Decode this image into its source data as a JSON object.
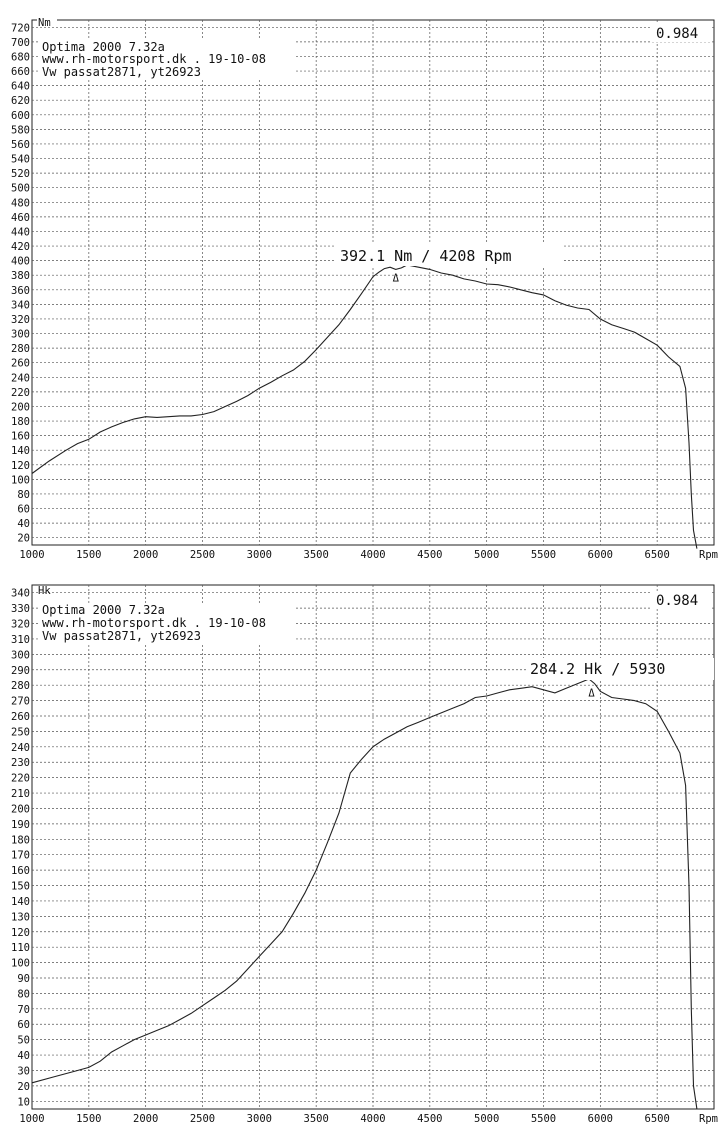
{
  "chart_data": [
    {
      "type": "line",
      "unit_label": "Nm",
      "axis_end_label": "Rpm",
      "correction": "0.984",
      "header_lines": [
        "Optima 2000 7.32a",
        "www.rh-motorsport.dk . 19-10-08",
        "Vw passat2871, yt26923"
      ],
      "peak_label": "392.1  Nm  /  4208  Rpm",
      "peak_marker": "Δ",
      "peak_point": [
        4208,
        385
      ],
      "xlim": [
        1000,
        7000
      ],
      "ylim": [
        10,
        730
      ],
      "x_ticks": [
        1000,
        1500,
        2000,
        2500,
        3000,
        3500,
        4000,
        4500,
        5000,
        5500,
        6000,
        6500
      ],
      "y_ticks": [
        20,
        40,
        60,
        80,
        100,
        120,
        140,
        160,
        180,
        200,
        220,
        240,
        260,
        280,
        300,
        320,
        340,
        360,
        380,
        400,
        420,
        440,
        460,
        480,
        500,
        520,
        540,
        560,
        580,
        600,
        620,
        640,
        660,
        680,
        700,
        720
      ],
      "x": [
        1000,
        1150,
        1300,
        1400,
        1500,
        1600,
        1700,
        1800,
        1900,
        2000,
        2100,
        2200,
        2300,
        2400,
        2500,
        2600,
        2700,
        2800,
        2900,
        3000,
        3100,
        3200,
        3300,
        3400,
        3500,
        3600,
        3700,
        3800,
        3900,
        4000,
        4050,
        4100,
        4150,
        4200,
        4250,
        4300,
        4400,
        4500,
        4600,
        4700,
        4800,
        4900,
        5000,
        5100,
        5200,
        5300,
        5400,
        5500,
        5600,
        5700,
        5800,
        5900,
        6000,
        6100,
        6200,
        6300,
        6400,
        6500,
        6600,
        6700,
        6750,
        6780,
        6800,
        6820,
        6850
      ],
      "y": [
        108,
        125,
        140,
        149,
        155,
        165,
        172,
        178,
        183,
        186,
        185,
        186,
        187,
        187,
        189,
        193,
        200,
        207,
        215,
        225,
        233,
        242,
        250,
        262,
        278,
        295,
        312,
        333,
        355,
        378,
        384,
        389,
        391,
        388,
        390,
        394,
        391,
        388,
        383,
        380,
        375,
        372,
        368,
        367,
        364,
        360,
        356,
        353,
        345,
        339,
        335,
        333,
        320,
        312,
        307,
        302,
        293,
        284,
        268,
        255,
        225,
        150,
        80,
        30,
        5
      ]
    },
    {
      "type": "line",
      "unit_label": "Hk",
      "axis_end_label": "Rpm",
      "correction": "0.984",
      "header_lines": [
        "Optima 2000 7.32a",
        "www.rh-motorsport.dk . 19-10-08",
        "Vw passat2871, yt26923"
      ],
      "peak_label": "284.2  Hk  /  5930",
      "peak_marker": "Δ",
      "peak_point": [
        5930,
        279
      ],
      "xlim": [
        1000,
        7000
      ],
      "ylim": [
        5,
        345
      ],
      "x_ticks": [
        1000,
        1500,
        2000,
        2500,
        3000,
        3500,
        4000,
        4500,
        5000,
        5500,
        6000,
        6500
      ],
      "y_ticks": [
        10,
        20,
        30,
        40,
        50,
        60,
        70,
        80,
        90,
        100,
        110,
        120,
        130,
        140,
        150,
        160,
        170,
        180,
        190,
        200,
        210,
        220,
        230,
        240,
        250,
        260,
        270,
        280,
        290,
        300,
        310,
        320,
        330,
        340
      ],
      "x": [
        1000,
        1200,
        1400,
        1500,
        1600,
        1700,
        1800,
        1900,
        2000,
        2100,
        2200,
        2300,
        2400,
        2500,
        2600,
        2700,
        2800,
        2900,
        3000,
        3100,
        3200,
        3300,
        3400,
        3500,
        3600,
        3700,
        3800,
        3900,
        4000,
        4100,
        4200,
        4300,
        4400,
        4500,
        4600,
        4700,
        4800,
        4900,
        5000,
        5100,
        5200,
        5300,
        5400,
        5500,
        5600,
        5700,
        5800,
        5900,
        5950,
        6000,
        6100,
        6200,
        6300,
        6400,
        6500,
        6600,
        6700,
        6750,
        6780,
        6800,
        6820,
        6850
      ],
      "y": [
        22,
        26,
        30,
        32,
        36,
        42,
        46,
        50,
        53,
        56,
        59,
        63,
        67,
        72,
        77,
        82,
        88,
        96,
        104,
        112,
        120,
        132,
        145,
        160,
        178,
        197,
        223,
        232,
        240,
        245,
        249,
        253,
        256,
        259,
        262,
        265,
        268,
        272,
        273,
        275,
        277,
        278,
        279,
        277,
        275,
        278,
        281,
        284,
        281,
        276,
        272,
        271,
        270,
        268,
        263,
        250,
        236,
        215,
        150,
        70,
        20,
        5
      ]
    }
  ]
}
